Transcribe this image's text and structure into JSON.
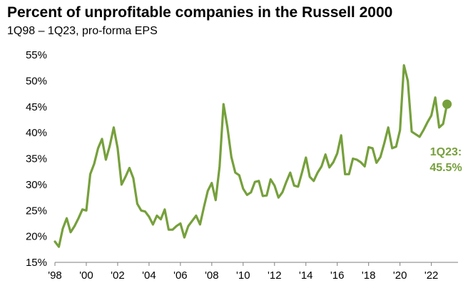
{
  "chart_data": {
    "type": "line",
    "title": "Percent of unprofitable companies in the Russell 2000",
    "subtitle": "1Q98 – 1Q23, pro-forma EPS",
    "xlabel": "",
    "ylabel": "",
    "ylim": [
      15,
      55
    ],
    "xlim": [
      1998,
      2023.7
    ],
    "y_ticks": [
      15,
      20,
      25,
      30,
      35,
      40,
      45,
      50,
      55
    ],
    "y_tick_labels": [
      "15%",
      "20%",
      "25%",
      "30%",
      "35%",
      "40%",
      "45%",
      "50%",
      "55%"
    ],
    "x_ticks": [
      1998,
      2000,
      2002,
      2004,
      2006,
      2008,
      2010,
      2012,
      2014,
      2016,
      2018,
      2020,
      2022
    ],
    "x_tick_labels": [
      "'98",
      "'00",
      "'02",
      "'04",
      "'06",
      "'08",
      "'10",
      "'12",
      "'14",
      "'16",
      "'18",
      "'20",
      "'22"
    ],
    "grid": false,
    "series": [
      {
        "name": "Percent of unprofitable companies",
        "color": "#76a03c",
        "x": [
          1998.0,
          1998.25,
          1998.5,
          1998.75,
          1999.0,
          1999.25,
          1999.5,
          1999.75,
          2000.0,
          2000.25,
          2000.5,
          2000.75,
          2001.0,
          2001.25,
          2001.5,
          2001.75,
          2002.0,
          2002.25,
          2002.5,
          2002.75,
          2003.0,
          2003.25,
          2003.5,
          2003.75,
          2004.0,
          2004.25,
          2004.5,
          2004.75,
          2005.0,
          2005.25,
          2005.5,
          2005.75,
          2006.0,
          2006.25,
          2006.5,
          2006.75,
          2007.0,
          2007.25,
          2007.5,
          2007.75,
          2008.0,
          2008.25,
          2008.5,
          2008.75,
          2009.0,
          2009.25,
          2009.5,
          2009.75,
          2010.0,
          2010.25,
          2010.5,
          2010.75,
          2011.0,
          2011.25,
          2011.5,
          2011.75,
          2012.0,
          2012.25,
          2012.5,
          2012.75,
          2013.0,
          2013.25,
          2013.5,
          2013.75,
          2014.0,
          2014.25,
          2014.5,
          2014.75,
          2015.0,
          2015.25,
          2015.5,
          2015.75,
          2016.0,
          2016.25,
          2016.5,
          2016.75,
          2017.0,
          2017.25,
          2017.5,
          2017.75,
          2018.0,
          2018.25,
          2018.5,
          2018.75,
          2019.0,
          2019.25,
          2019.5,
          2019.75,
          2020.0,
          2020.25,
          2020.5,
          2020.75,
          2021.0,
          2021.25,
          2021.5,
          2021.75,
          2022.0,
          2022.25,
          2022.5,
          2022.75,
          2023.0
        ],
        "values": [
          19.0,
          18.0,
          21.5,
          23.5,
          20.8,
          22.0,
          23.5,
          25.2,
          25.0,
          32.0,
          34.0,
          37.0,
          38.8,
          34.8,
          37.5,
          41.0,
          37.0,
          30.0,
          31.5,
          33.2,
          31.2,
          26.3,
          25.0,
          24.8,
          23.8,
          22.3,
          24.0,
          23.3,
          25.2,
          21.3,
          21.3,
          22.0,
          22.5,
          19.8,
          22.0,
          23.0,
          24.0,
          22.3,
          25.7,
          28.8,
          30.3,
          27.0,
          33.5,
          45.5,
          41.0,
          35.3,
          32.3,
          31.8,
          29.2,
          28.0,
          28.5,
          30.5,
          30.7,
          27.8,
          27.9,
          31.0,
          29.8,
          27.5,
          28.5,
          30.5,
          32.3,
          29.8,
          29.6,
          32.3,
          35.2,
          31.5,
          30.7,
          32.3,
          33.5,
          35.8,
          33.3,
          34.3,
          36.0,
          39.5,
          32.0,
          32.0,
          35.0,
          34.8,
          34.3,
          33.5,
          37.2,
          37.0,
          34.2,
          35.3,
          38.0,
          41.0,
          37.0,
          37.3,
          40.5,
          53.0,
          50.0,
          40.2,
          39.7,
          39.2,
          40.5,
          42.0,
          43.3,
          46.8,
          41.0,
          41.7,
          45.5
        ]
      }
    ],
    "end_marker": {
      "x": 2023.0,
      "value": 45.5
    },
    "annotation": {
      "line1": "1Q23:",
      "line2": "45.5%"
    }
  }
}
